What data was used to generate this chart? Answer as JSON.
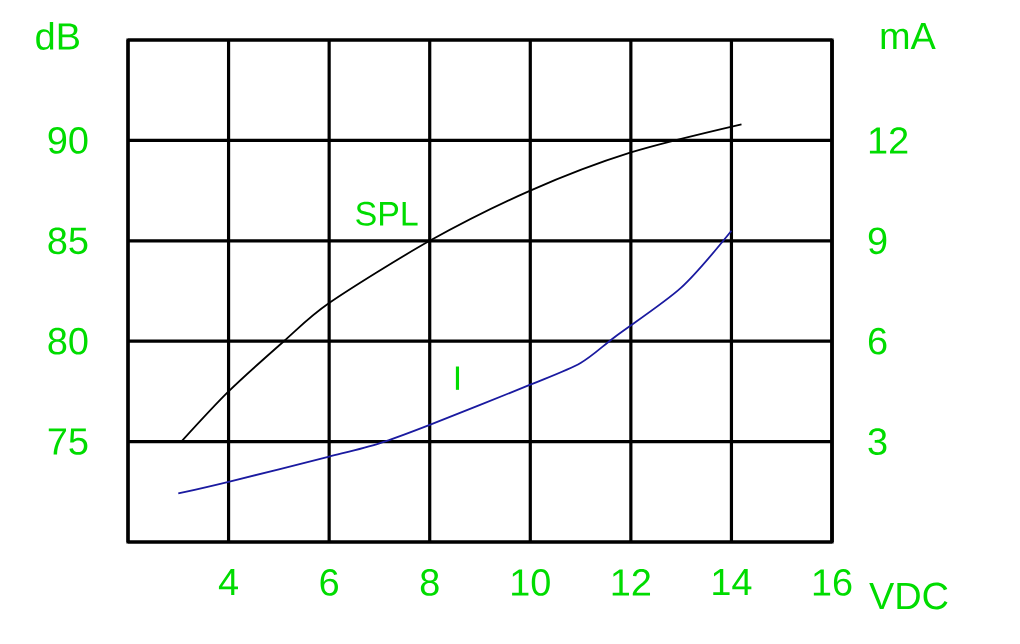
{
  "chart_data": {
    "type": "line",
    "xlabel": "VDC",
    "ylabel": "dB",
    "y2label": "mA",
    "x": [
      3.06,
      4,
      5.1,
      6,
      8,
      10,
      12,
      14.2
    ],
    "series": [
      {
        "name": "SPL",
        "color": "#000000",
        "values": [
          75.0,
          77.5,
          80,
          81.9,
          85,
          87.5,
          89.4,
          90.8
        ]
      },
      {
        "name": "I",
        "color": "#1a1aa0",
        "axis": "y2",
        "x": [
          3.0,
          4,
          6,
          7,
          8,
          10,
          11,
          11.7,
          13,
          14
        ],
        "values": [
          1.45,
          1.8,
          2.55,
          2.95,
          3.5,
          4.7,
          5.35,
          6.15,
          7.6,
          9.3
        ]
      }
    ],
    "xlim": [
      2,
      16
    ],
    "xticks": [
      {
        "value": 2,
        "label": null
      },
      4,
      6,
      8,
      10,
      12,
      14,
      16
    ],
    "ylim": [
      70,
      95
    ],
    "yticks": [
      {
        "value": 70,
        "label": null
      },
      75,
      80,
      85,
      90,
      {
        "value": 95,
        "label": null
      }
    ],
    "y2lim": [
      0,
      15
    ],
    "y2ticks": [
      3,
      6,
      9,
      12
    ],
    "grid": true
  }
}
